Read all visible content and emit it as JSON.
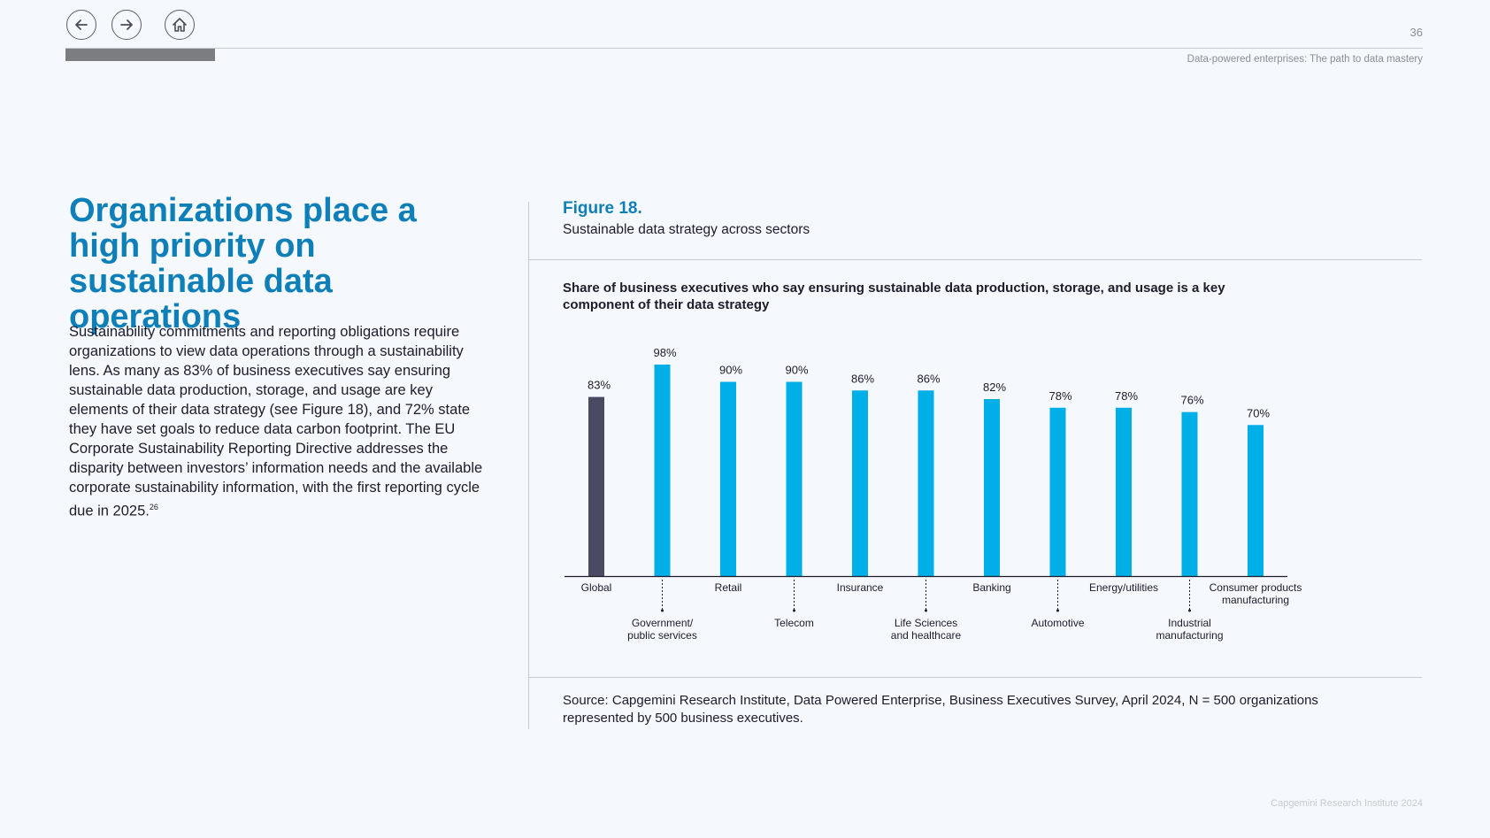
{
  "header": {
    "page_number": "36",
    "doc_title": "Data-powered enterprises: The path to data mastery",
    "nav": {
      "back_icon": "arrow-left-icon",
      "forward_icon": "arrow-right-icon",
      "home_icon": "home-icon"
    },
    "progress_fraction": 0.11
  },
  "left": {
    "heading": "Organizations place a high priority on sustainable data operations",
    "body": "Sustainability commitments and reporting obligations require organizations to view data operations through a sustainability lens. As many as 83% of business executives say ensuring sustainable data production, storage, and usage are key elements of their data strategy (see Figure 18), and 72% state they have set goals to reduce data carbon footprint. The EU Corporate Sustainability Reporting Directive addresses the disparity between investors’ information needs and the available corporate sustainability information, with the first reporting cycle due in 2025.",
    "footnote": "26"
  },
  "figure": {
    "label": "Figure 18.",
    "caption": "Sustainable data strategy across sectors",
    "chart_title": "Share of business executives who say ensuring sustainable data production, storage, and usage is a key component of their data strategy",
    "source": "Source: Capgemini Research Institute, Data Powered Enterprise, Business Executives Survey, April 2024, N = 500 organizations represented by 500 business executives."
  },
  "chart_data": {
    "type": "bar",
    "title": "Share of business executives who say ensuring sustainable data production, storage, and usage is a key component of their data strategy",
    "categories": [
      "Global",
      "Government/\npublic services",
      "Retail",
      "Telecom",
      "Insurance",
      "Life Sciences\nand healthcare",
      "Banking",
      "Automotive",
      "Energy/utilities",
      "Industrial\nmanufacturing",
      "Consumer products\nmanufacturing"
    ],
    "values": [
      83,
      98,
      90,
      90,
      86,
      86,
      82,
      78,
      78,
      76,
      70
    ],
    "value_labels": [
      "83%",
      "98%",
      "90%",
      "90%",
      "86%",
      "86%",
      "82%",
      "78%",
      "78%",
      "76%",
      "70%"
    ],
    "ylim": [
      0,
      100
    ],
    "colors": {
      "highlight": "#4a4b63",
      "bars": "#00aee8"
    },
    "highlight_category": "Global",
    "grid": false,
    "legend": "none"
  },
  "footer": {
    "text": "Capgemini Research Institute 2024"
  }
}
